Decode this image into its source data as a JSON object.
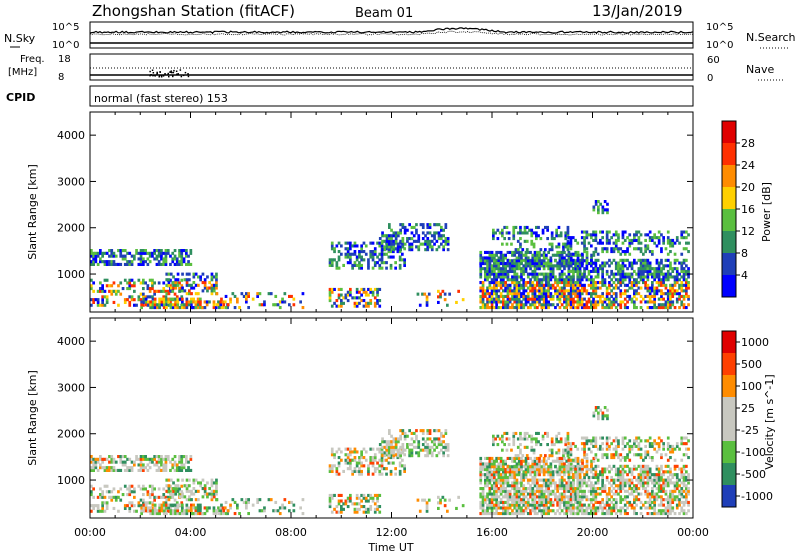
{
  "header": {
    "station": "Zhongshan Station (fitACF)",
    "beam": "Beam 01",
    "date": "13/Jan/2019"
  },
  "panels": {
    "nsky": {
      "label": "N.Sky",
      "ticks": [
        "10^5",
        "10^0"
      ]
    },
    "nsearch": {
      "label": "N.Search",
      "ticks": [
        "10^5",
        "10^0"
      ]
    },
    "freq": {
      "label_top": "Freq.",
      "label_unit": "[MHz]",
      "ticks": [
        "18",
        "8"
      ]
    },
    "nave": {
      "label": "Nave",
      "ticks": [
        "60",
        "0"
      ]
    },
    "cpid": {
      "label": "CPID",
      "text": "normal (fast stereo) 153"
    }
  },
  "colors": {
    "power": [
      "#0000ff",
      "#1f3fb8",
      "#2f8f5f",
      "#5abf3f",
      "#ffd000",
      "#ff8c00",
      "#ff3000",
      "#e00000"
    ],
    "velocity": [
      "#1f3fb8",
      "#2f8f5f",
      "#5abf3f",
      "#c8c8c0",
      "#c8c8c0",
      "#ff8c00",
      "#ff4000",
      "#e00000"
    ],
    "gray": "#c8c8c0"
  },
  "chart_data": [
    {
      "type": "heatmap",
      "name": "power",
      "ylabel": "Slant Range [km]",
      "ylim": [
        180,
        4500
      ],
      "yticks": [
        "1000",
        "2000",
        "3000",
        "4000"
      ],
      "xticks": [
        "00:00",
        "04:00",
        "08:00",
        "12:00",
        "16:00",
        "20:00",
        "00:00"
      ],
      "colorbar_label": "Power [dB]",
      "colorbar_ticks": [
        "4",
        "8",
        "12",
        "16",
        "20",
        "24",
        "28"
      ],
      "colorbar_range": [
        0,
        32
      ]
    },
    {
      "type": "heatmap",
      "name": "velocity",
      "ylabel": "Slant Range [km]",
      "ylim": [
        180,
        4500
      ],
      "yticks": [
        "1000",
        "2000",
        "3000",
        "4000"
      ],
      "xticks": [
        "00:00",
        "04:00",
        "08:00",
        "12:00",
        "16:00",
        "20:00",
        "00:00"
      ],
      "xlabel": "Time UT",
      "colorbar_label": "Velocity [m s^-1]",
      "colorbar_ticks": [
        "1000",
        "500",
        "100",
        "25",
        "-25",
        "-100",
        "-500",
        "-1000"
      ]
    }
  ]
}
